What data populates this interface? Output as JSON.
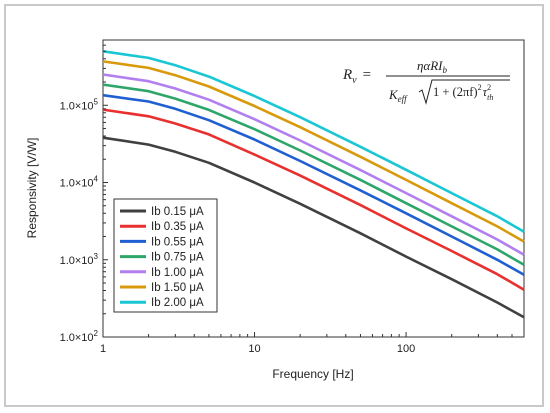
{
  "chart_data": {
    "type": "line",
    "title": "",
    "xlabel": "Frequency [Hz]",
    "ylabel": "Responsivity [V/W]",
    "xscale": "log",
    "yscale": "log",
    "xlim": [
      1,
      600
    ],
    "ylim": [
      100,
      700000
    ],
    "x_ticks": [
      1,
      10,
      100
    ],
    "x_tick_labels": [
      "1",
      "10",
      "100"
    ],
    "y_ticks": [
      100,
      1000,
      10000,
      100000
    ],
    "y_tick_labels": [
      {
        "base": "1.0×10",
        "exp": "2"
      },
      {
        "base": "1.0×10",
        "exp": "3"
      },
      {
        "base": "1.0×10",
        "exp": "4"
      },
      {
        "base": "1.0×10",
        "exp": "5"
      }
    ],
    "legend": {
      "position": "lower-left"
    },
    "x": [
      1,
      2,
      3,
      5,
      10,
      20,
      50,
      100,
      200,
      400,
      600
    ],
    "series": [
      {
        "name": "Ib 0.15 μA",
        "color": "#404040",
        "values": [
          38000,
          31000,
          25000,
          18000,
          10000,
          5300,
          2200,
          1100,
          560,
          280,
          180
        ]
      },
      {
        "name": "Ib 0.35 μA",
        "color": "#e8312f",
        "values": [
          88000,
          72000,
          58000,
          42000,
          23000,
          12300,
          5100,
          2550,
          1300,
          650,
          410
        ]
      },
      {
        "name": "Ib 0.55 μA",
        "color": "#1f5fd1",
        "values": [
          135000,
          112000,
          90000,
          64000,
          36000,
          19000,
          7900,
          4000,
          2000,
          1000,
          640
        ]
      },
      {
        "name": "Ib 0.75 μA",
        "color": "#2ea66a",
        "values": [
          185000,
          152000,
          122000,
          87000,
          49000,
          26000,
          10800,
          5400,
          2700,
          1360,
          860
        ]
      },
      {
        "name": "Ib 1.00 μA",
        "color": "#b27ff0",
        "values": [
          250000,
          205000,
          165000,
          118000,
          66000,
          35000,
          14500,
          7300,
          3650,
          1830,
          1160
        ]
      },
      {
        "name": "Ib 1.50 μA",
        "color": "#d89a0c",
        "values": [
          370000,
          305000,
          245000,
          175000,
          98000,
          52000,
          21500,
          10800,
          5400,
          2700,
          1720
        ]
      },
      {
        "name": "Ib 2.00 μA",
        "color": "#19c7d4",
        "values": [
          500000,
          410000,
          330000,
          235000,
          132000,
          70000,
          29000,
          14600,
          7300,
          3650,
          2300
        ]
      }
    ],
    "annotation": {
      "lhs_base": "R",
      "lhs_sub": "v",
      "eq": "=",
      "num_base": "ηαRI",
      "num_sub": "b",
      "den_base": "K",
      "den_sub": "eff",
      "den_radicand": "1 + (2πf)",
      "den_sq": "2",
      "den_tau": "τ",
      "den_tau_sup": "2",
      "den_tau_sub": "th"
    }
  }
}
